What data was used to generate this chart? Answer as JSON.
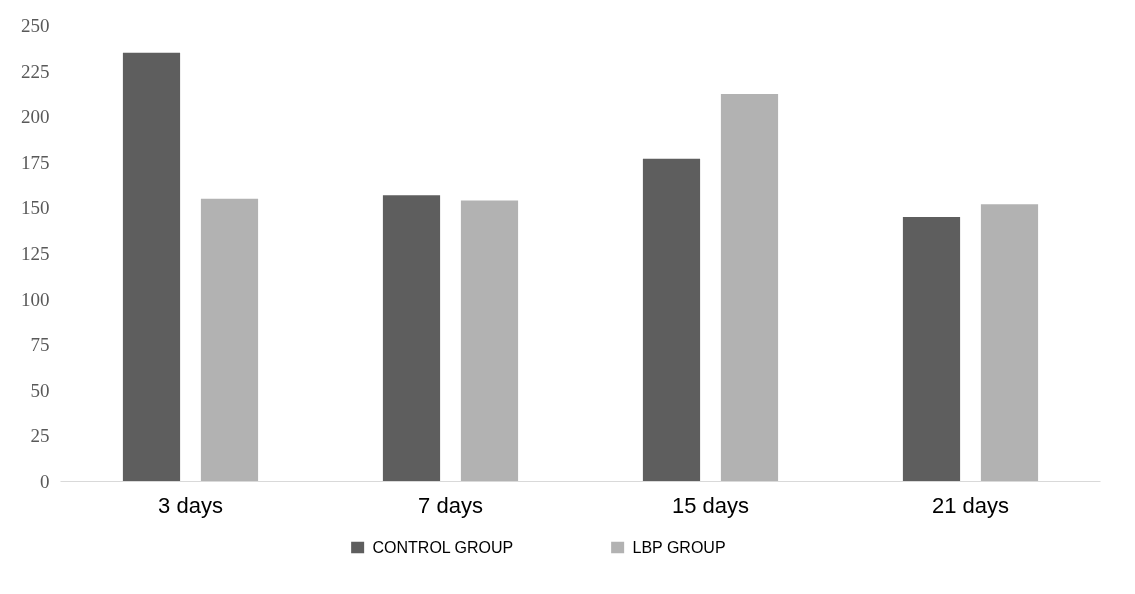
{
  "chart_data": {
    "type": "bar",
    "categories": [
      "3 days",
      "7 days",
      "15 days",
      "21 days"
    ],
    "series": [
      {
        "name": "CONTROL GROUP",
        "color": "#5e5e5e",
        "values": [
          235,
          157,
          177,
          145
        ]
      },
      {
        "name": "LBP GROUP",
        "color": "#b2b2b2",
        "values": [
          155,
          154,
          212.5,
          152
        ]
      }
    ],
    "ylim": [
      0,
      250
    ],
    "yticks": [
      0,
      25,
      50,
      75,
      100,
      125,
      150,
      175,
      200,
      225,
      250
    ],
    "grid": false,
    "legend": "bottom"
  }
}
